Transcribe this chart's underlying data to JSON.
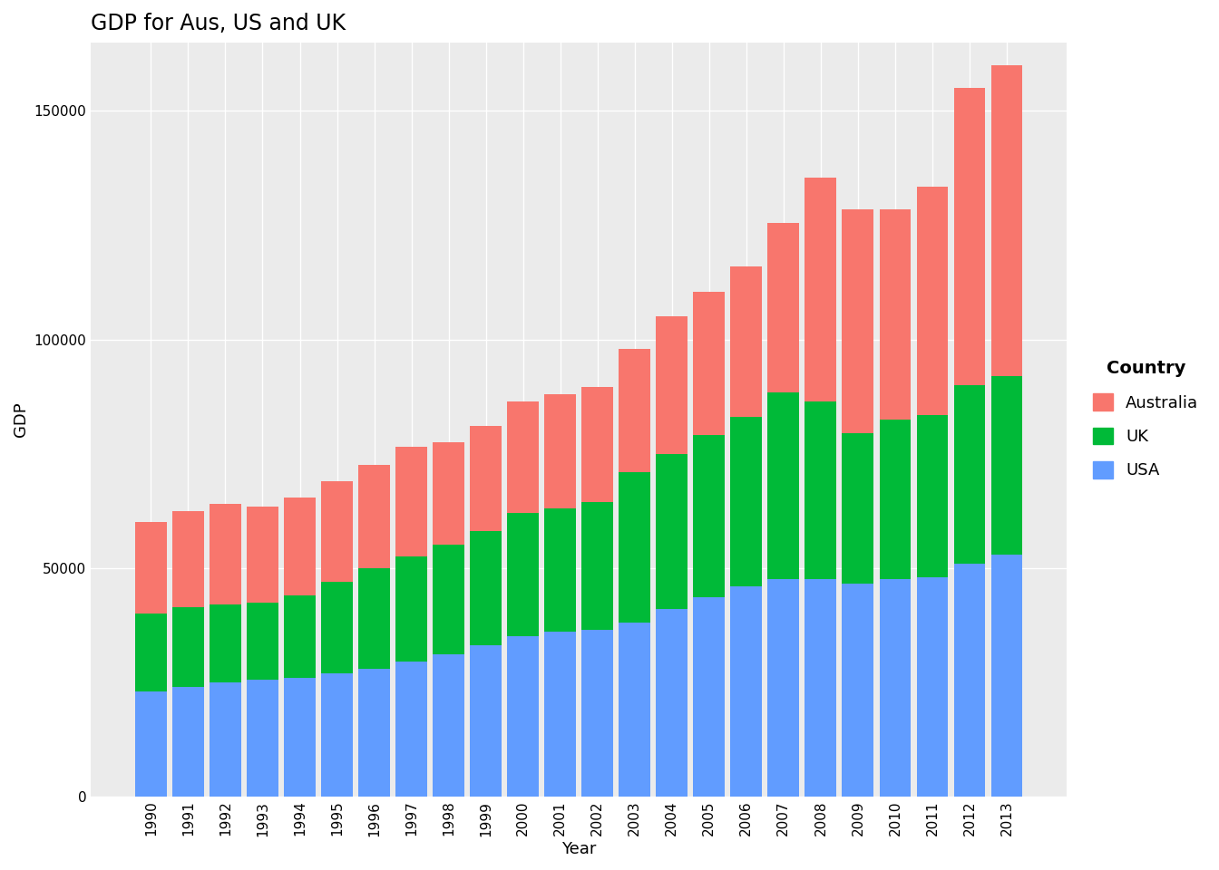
{
  "title": "GDP for Aus, US and UK",
  "xlabel": "Year",
  "ylabel": "GDP",
  "years": [
    1990,
    1991,
    1992,
    1993,
    1994,
    1995,
    1996,
    1997,
    1998,
    1999,
    2000,
    2001,
    2002,
    2003,
    2004,
    2005,
    2006,
    2007,
    2008,
    2009,
    2010,
    2011,
    2012,
    2013
  ],
  "usa": [
    23000,
    24000,
    25000,
    25500,
    26000,
    27000,
    28000,
    29500,
    31000,
    33000,
    35000,
    36000,
    36500,
    38000,
    41000,
    43500,
    46000,
    47500,
    47500,
    46500,
    47500,
    48000,
    51000,
    53000
  ],
  "uk": [
    17000,
    17500,
    17000,
    17000,
    18000,
    20000,
    22000,
    23000,
    24000,
    25000,
    27000,
    27000,
    28000,
    33000,
    34000,
    35500,
    37000,
    41000,
    39000,
    33000,
    35000,
    35500,
    39000,
    39000
  ],
  "australia": [
    20000,
    21000,
    22000,
    21000,
    21500,
    22000,
    22500,
    24000,
    22500,
    23000,
    24500,
    25000,
    25000,
    27000,
    30000,
    31500,
    33000,
    37000,
    49000,
    49000,
    46000,
    50000,
    65000,
    68000
  ],
  "colors": {
    "USA": "#619CFF",
    "UK": "#00BA38",
    "Australia": "#F8766D"
  },
  "background_color": "#EBEBEB",
  "grid_color": "#FFFFFF",
  "ylim": [
    0,
    165000
  ],
  "yticks": [
    0,
    50000,
    100000,
    150000
  ],
  "ytick_labels": [
    "0",
    "50000",
    "100000",
    "150000"
  ],
  "legend_title": "Country",
  "title_fontsize": 17,
  "axis_label_fontsize": 13,
  "tick_fontsize": 11
}
